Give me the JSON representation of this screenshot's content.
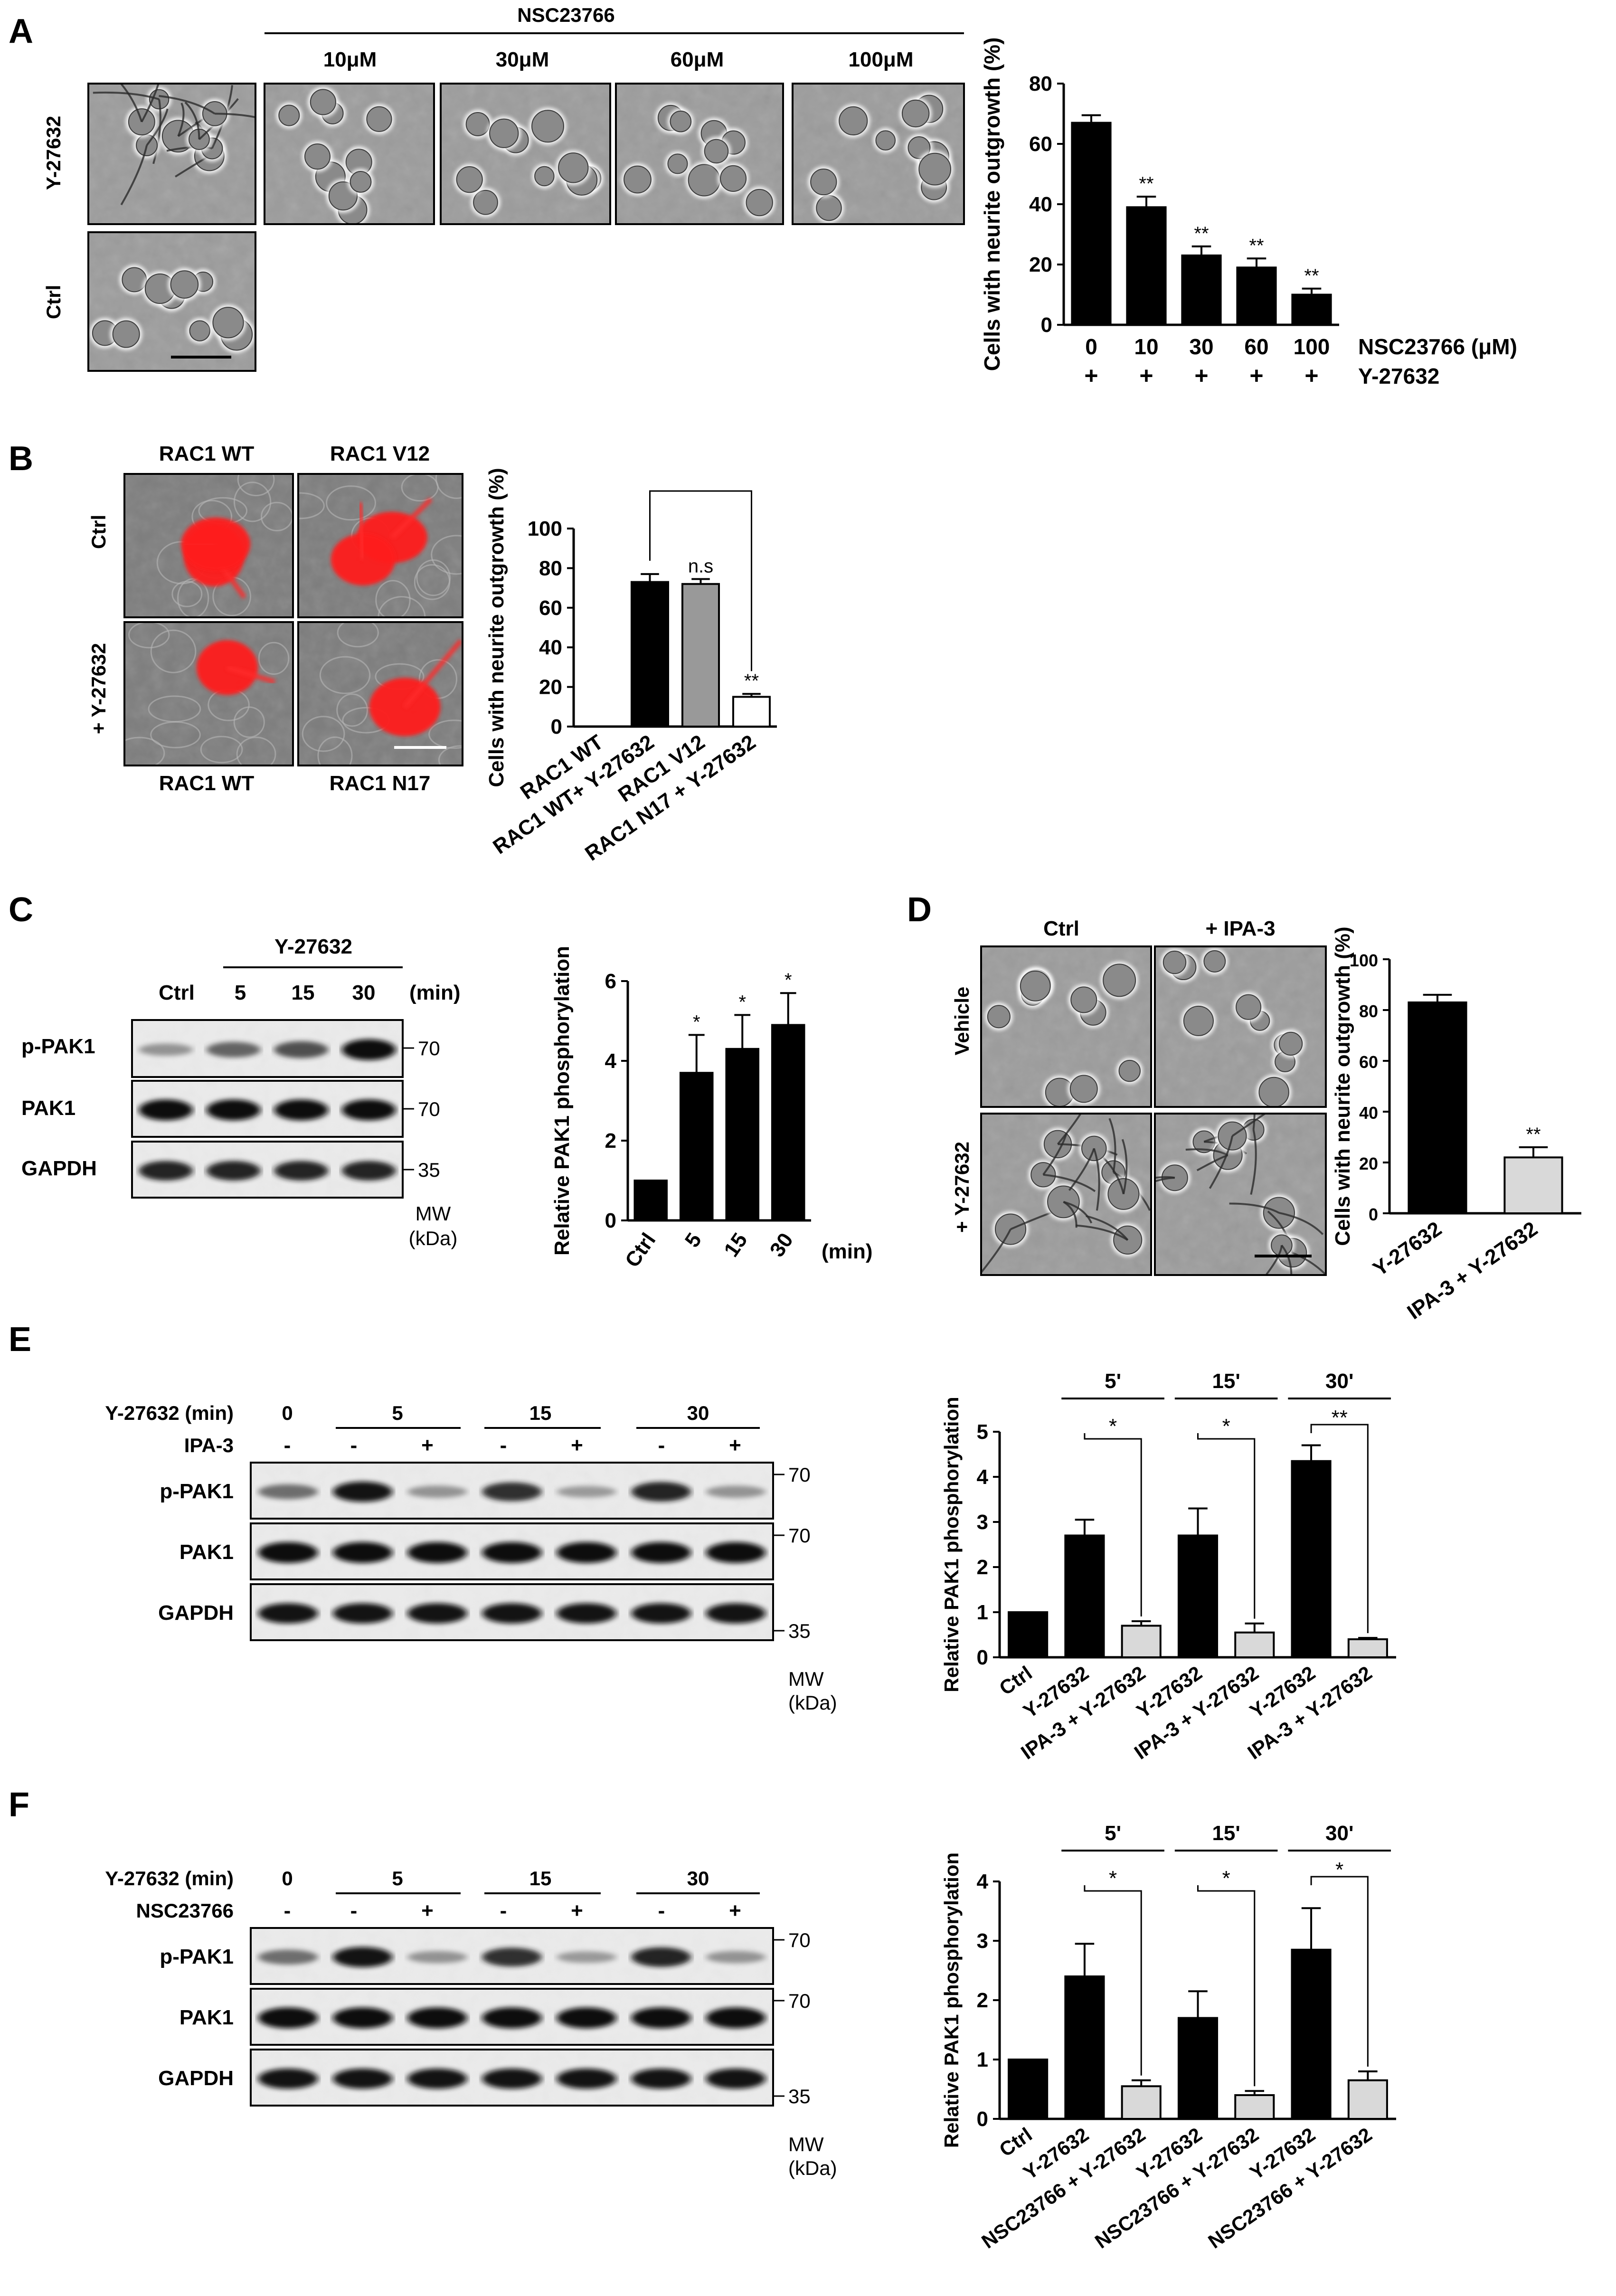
{
  "panels": {
    "A": {
      "letter": "A",
      "drug_header": "NSC23766",
      "concentrations": [
        "10μM",
        "30μM",
        "60μM",
        "100μM"
      ],
      "row_labels": [
        "Y-27632",
        "Ctrl"
      ]
    },
    "B": {
      "letter": "B",
      "col_top": [
        "RAC1 WT",
        "RAC1 V12"
      ],
      "col_bottom": [
        "RAC1 WT",
        "RAC1 N17"
      ],
      "row_labels": [
        "Ctrl",
        "+ Y-27632"
      ]
    },
    "C": {
      "letter": "C",
      "treatment": "Y-27632",
      "lanes": [
        "Ctrl",
        "5",
        "15",
        "30"
      ],
      "lane_unit": "(min)",
      "bands": [
        "p-PAK1",
        "PAK1",
        "GAPDH"
      ],
      "mw": [
        "70",
        "70",
        "35"
      ],
      "mw_label": [
        "MW",
        "(kDa)"
      ]
    },
    "D": {
      "letter": "D",
      "col_labels": [
        "Ctrl",
        "+ IPA-3"
      ],
      "row_labels": [
        "Vehicle",
        "+ Y-27632"
      ]
    },
    "E": {
      "letter": "E",
      "time_label": "Y-27632 (min)",
      "times": [
        "0",
        "5",
        "15",
        "30"
      ],
      "inhibitor": "IPA-3",
      "signs": [
        "-",
        "-",
        "+",
        "-",
        "+",
        "-",
        "+"
      ],
      "bands": [
        "p-PAK1",
        "PAK1",
        "GAPDH"
      ],
      "mw": [
        "70",
        "70",
        "35"
      ],
      "mw_label": [
        "MW",
        "(kDa)"
      ]
    },
    "F": {
      "letter": "F",
      "time_label": "Y-27632 (min)",
      "times": [
        "0",
        "5",
        "15",
        "30"
      ],
      "inhibitor": "NSC23766",
      "signs": [
        "-",
        "-",
        "+",
        "-",
        "+",
        "-",
        "+"
      ],
      "bands": [
        "p-PAK1",
        "PAK1",
        "GAPDH"
      ],
      "mw": [
        "70",
        "70",
        "35"
      ],
      "mw_label": [
        "MW",
        "(kDa)"
      ]
    }
  },
  "chart_data": [
    {
      "id": "A",
      "type": "bar",
      "ylabel": "Cells with neurite outgrowth (%)",
      "ylim": [
        0,
        80
      ],
      "yticks": [
        0,
        20,
        40,
        60,
        80
      ],
      "categories": [
        "0",
        "10",
        "30",
        "60",
        "100"
      ],
      "values": [
        67,
        39,
        23,
        19,
        10
      ],
      "errors": [
        2.5,
        3.5,
        3,
        3,
        2
      ],
      "sig": [
        "",
        "**",
        "**",
        "**",
        "**"
      ],
      "fills": [
        "#000000",
        "#000000",
        "#000000",
        "#000000",
        "#000000"
      ],
      "row_labels": [
        "NSC23766 (μM)",
        "Y-27632"
      ],
      "row2": [
        "+",
        "+",
        "+",
        "+",
        "+"
      ]
    },
    {
      "id": "B",
      "type": "bar",
      "ylabel": "Cells with neurite outgrowth (%)",
      "ylim": [
        0,
        100
      ],
      "yticks": [
        0,
        20,
        40,
        60,
        80,
        100
      ],
      "categories": [
        "RAC1 WT",
        "RAC1 WT+ Y-27632",
        "RAC1 V12",
        "RAC1 N17 + Y-27632"
      ],
      "values": [
        0,
        73,
        72,
        15
      ],
      "errors": [
        0,
        4,
        2.5,
        1.5
      ],
      "sig": [
        "",
        "",
        "n.s",
        "**"
      ],
      "fills": [
        "#000000",
        "#000000",
        "#999999",
        "#ffffff"
      ]
    },
    {
      "id": "C",
      "type": "bar",
      "ylabel": "Relative PAK1 phosphorylation",
      "ylim": [
        0,
        6
      ],
      "yticks": [
        0,
        2,
        4,
        6
      ],
      "categories": [
        "Ctrl",
        "5",
        "15",
        "30"
      ],
      "values": [
        1,
        3.7,
        4.3,
        4.9
      ],
      "errors": [
        0,
        0.95,
        0.85,
        0.8
      ],
      "sig": [
        "",
        "*",
        "*",
        "*"
      ],
      "fills": [
        "#000000",
        "#000000",
        "#000000",
        "#000000"
      ],
      "xunit": "(min)"
    },
    {
      "id": "D",
      "type": "bar",
      "ylabel": "Cells with neurite outgrowth (%)",
      "ylim": [
        0,
        100
      ],
      "yticks": [
        0,
        20,
        40,
        60,
        80,
        100
      ],
      "categories": [
        "Y-27632",
        "IPA-3 + Y-27632"
      ],
      "values": [
        83,
        22
      ],
      "errors": [
        3,
        4
      ],
      "sig": [
        "",
        "**"
      ],
      "fills": [
        "#000000",
        "#d9d9d9"
      ]
    },
    {
      "id": "E",
      "type": "bar",
      "ylabel": "Relative PAK1 phosphorylation",
      "ylim": [
        0,
        5
      ],
      "yticks": [
        0,
        1,
        2,
        3,
        4,
        5
      ],
      "categories": [
        "Ctrl",
        "Y-27632",
        "IPA-3 + Y-27632",
        "Y-27632",
        "IPA-3 + Y-27632",
        "Y-27632",
        "IPA-3 + Y-27632"
      ],
      "values": [
        1,
        2.7,
        0.7,
        2.7,
        0.55,
        4.35,
        0.4
      ],
      "errors": [
        0,
        0.35,
        0.1,
        0.6,
        0.2,
        0.35,
        0.03
      ],
      "fills": [
        "#000000",
        "#000000",
        "#d9d9d9",
        "#000000",
        "#d9d9d9",
        "#000000",
        "#d9d9d9"
      ],
      "groups": [
        "5'",
        "15'",
        "30'"
      ],
      "group_sig": [
        "*",
        "*",
        "**"
      ]
    },
    {
      "id": "F",
      "type": "bar",
      "ylabel": "Relative PAK1 phosphorylation",
      "ylim": [
        0,
        4
      ],
      "yticks": [
        0,
        1,
        2,
        3,
        4
      ],
      "categories": [
        "Ctrl",
        "Y-27632",
        "NSC23766 + Y-27632",
        "Y-27632",
        "NSC23766 + Y-27632",
        "Y-27632",
        "NSC23766 + Y-27632"
      ],
      "values": [
        1,
        2.4,
        0.55,
        1.7,
        0.4,
        2.85,
        0.65
      ],
      "errors": [
        0,
        0.55,
        0.1,
        0.45,
        0.07,
        0.7,
        0.15
      ],
      "fills": [
        "#000000",
        "#000000",
        "#d9d9d9",
        "#000000",
        "#d9d9d9",
        "#000000",
        "#d9d9d9"
      ],
      "groups": [
        "5'",
        "15'",
        "30'"
      ],
      "group_sig": [
        "*",
        "*",
        "*"
      ]
    }
  ]
}
